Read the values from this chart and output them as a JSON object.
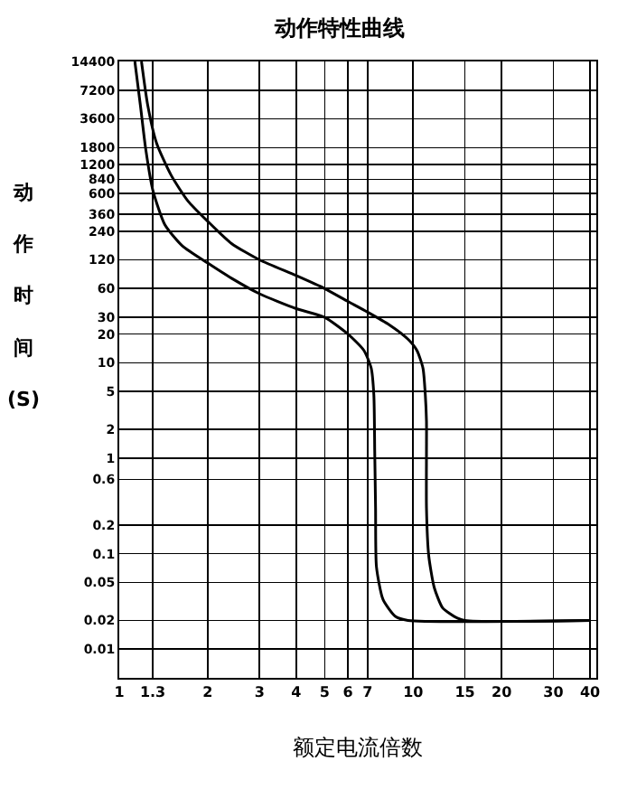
{
  "chart_data": {
    "type": "line",
    "title": "动作特性曲线",
    "xlabel": "额定电流倍数",
    "ylabel": "动作时间(S)",
    "log": "xy",
    "grid": true,
    "marker": "none",
    "line_style": "solid",
    "xlim": [
      1,
      42
    ],
    "xticks": [
      1,
      1.3,
      2,
      3,
      4,
      5,
      6,
      7,
      10,
      15,
      20,
      30,
      40
    ],
    "ylim": [
      0.005,
      14400
    ],
    "yticks": [
      0.01,
      0.02,
      0.05,
      0.1,
      0.2,
      0.6,
      1,
      2,
      5,
      10,
      20,
      30,
      60,
      120,
      240,
      360,
      600,
      840,
      1200,
      1800,
      3600,
      7200,
      14400
    ],
    "series": [
      {
        "color": "#000000",
        "x": [
          1.19,
          1.25,
          1.34,
          1.5,
          1.71,
          2,
          2.41,
          3,
          4,
          5,
          6,
          7,
          8.3,
          9.6,
          10.3,
          10.8,
          11,
          11.1,
          11.1,
          11.1,
          11.3,
          11.8,
          12.6,
          13.8,
          15,
          40
        ],
        "values": [
          14400,
          5000,
          2000,
          930,
          500,
          304,
          178,
          120,
          82,
          60,
          44,
          34,
          25,
          17.7,
          13.5,
          8.8,
          4.6,
          2.45,
          1.19,
          0.3,
          0.095,
          0.044,
          0.027,
          0.022,
          0.02,
          0.02
        ]
      },
      {
        "color": "#000000",
        "x": [
          1.13,
          1.18,
          1.23,
          1.3,
          1.43,
          1.64,
          2,
          2.41,
          3,
          4,
          5,
          6,
          6.8,
          7.2,
          7.35,
          7.4,
          7.45,
          7.5,
          7.9,
          8.7,
          9.6,
          40
        ],
        "values": [
          14400,
          5000,
          1750,
          650,
          279,
          168,
          111,
          77,
          53,
          37,
          30,
          20,
          13.5,
          8.8,
          4.6,
          1.19,
          0.3,
          0.073,
          0.033,
          0.022,
          0.02,
          0.02
        ]
      }
    ]
  }
}
